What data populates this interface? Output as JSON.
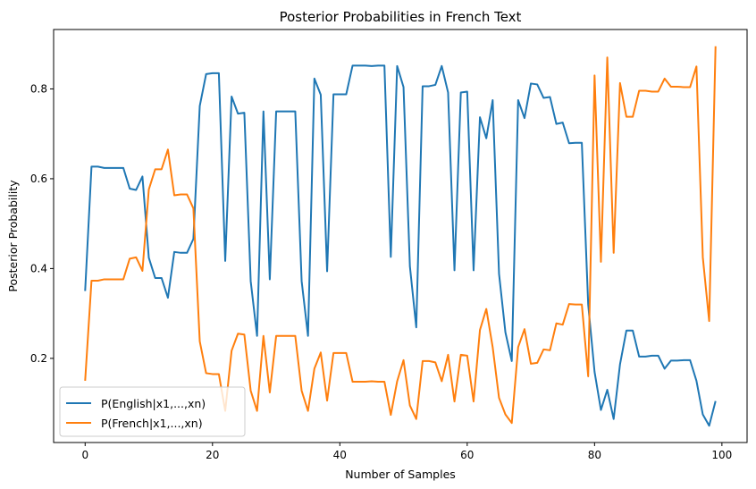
{
  "chart_data": {
    "type": "line",
    "title": "Posterior Probabilities in French Text",
    "xlabel": "Number of Samples",
    "ylabel": "Posterior Probability",
    "xlim": [
      -4.95,
      103.95
    ],
    "ylim": [
      0.0126,
      0.9323
    ],
    "xticks": [
      0,
      20,
      40,
      60,
      80,
      100
    ],
    "yticks": [
      0.2,
      0.4,
      0.6,
      0.8
    ],
    "xtick_labels": [
      "0",
      "20",
      "40",
      "60",
      "80",
      "100"
    ],
    "ytick_labels": [
      "0.2",
      "0.4",
      "0.6",
      "0.8"
    ],
    "grid": false,
    "legend_position": "lower-left",
    "x": [
      0,
      1,
      2,
      3,
      4,
      5,
      6,
      7,
      8,
      9,
      10,
      11,
      12,
      13,
      14,
      15,
      16,
      17,
      18,
      19,
      20,
      21,
      22,
      23,
      24,
      25,
      26,
      27,
      28,
      29,
      30,
      31,
      32,
      33,
      34,
      35,
      36,
      37,
      38,
      39,
      40,
      41,
      42,
      43,
      44,
      45,
      46,
      47,
      48,
      49,
      50,
      51,
      52,
      53,
      54,
      55,
      56,
      57,
      58,
      59,
      60,
      61,
      62,
      63,
      64,
      65,
      66,
      67,
      68,
      69,
      70,
      71,
      72,
      73,
      74,
      75,
      76,
      77,
      78,
      79,
      80,
      81,
      82,
      83,
      84,
      85,
      86,
      87,
      88,
      89,
      90,
      91,
      92,
      93,
      94,
      95,
      96,
      97,
      98,
      99
    ],
    "series": [
      {
        "name": "P(English|x1,...,xn)",
        "color": "#1f77b4",
        "values": [
          0.35,
          0.627,
          0.627,
          0.624,
          0.624,
          0.624,
          0.624,
          0.578,
          0.575,
          0.605,
          0.424,
          0.379,
          0.379,
          0.335,
          0.437,
          0.435,
          0.435,
          0.466,
          0.762,
          0.833,
          0.835,
          0.835,
          0.417,
          0.783,
          0.745,
          0.747,
          0.372,
          0.25,
          0.75,
          0.376,
          0.75,
          0.75,
          0.75,
          0.75,
          0.372,
          0.25,
          0.823,
          0.787,
          0.394,
          0.788,
          0.788,
          0.788,
          0.852,
          0.852,
          0.852,
          0.851,
          0.852,
          0.852,
          0.426,
          0.851,
          0.804,
          0.405,
          0.269,
          0.806,
          0.806,
          0.809,
          0.851,
          0.792,
          0.396,
          0.792,
          0.794,
          0.396,
          0.737,
          0.69,
          0.775,
          0.388,
          0.258,
          0.194,
          0.775,
          0.735,
          0.812,
          0.81,
          0.78,
          0.782,
          0.722,
          0.725,
          0.679,
          0.68,
          0.68,
          0.32,
          0.17,
          0.085,
          0.13,
          0.065,
          0.187,
          0.262,
          0.262,
          0.204,
          0.204,
          0.206,
          0.206,
          0.177,
          0.195,
          0.195,
          0.196,
          0.196,
          0.15,
          0.075,
          0.05,
          0.105
        ]
      },
      {
        "name": "P(French|x1,...,xn)",
        "color": "#ff7f0e",
        "values": [
          0.15,
          0.373,
          0.373,
          0.376,
          0.376,
          0.376,
          0.376,
          0.422,
          0.425,
          0.395,
          0.576,
          0.621,
          0.621,
          0.665,
          0.563,
          0.565,
          0.565,
          0.534,
          0.238,
          0.167,
          0.165,
          0.165,
          0.083,
          0.217,
          0.255,
          0.253,
          0.128,
          0.083,
          0.25,
          0.124,
          0.25,
          0.25,
          0.25,
          0.25,
          0.128,
          0.083,
          0.177,
          0.213,
          0.106,
          0.212,
          0.212,
          0.212,
          0.148,
          0.148,
          0.148,
          0.149,
          0.148,
          0.148,
          0.074,
          0.149,
          0.196,
          0.095,
          0.065,
          0.194,
          0.194,
          0.191,
          0.149,
          0.208,
          0.104,
          0.208,
          0.206,
          0.104,
          0.263,
          0.31,
          0.225,
          0.112,
          0.075,
          0.056,
          0.225,
          0.265,
          0.188,
          0.19,
          0.22,
          0.218,
          0.278,
          0.275,
          0.321,
          0.32,
          0.32,
          0.16,
          0.83,
          0.415,
          0.87,
          0.435,
          0.813,
          0.738,
          0.738,
          0.796,
          0.796,
          0.794,
          0.794,
          0.823,
          0.805,
          0.805,
          0.804,
          0.804,
          0.85,
          0.425,
          0.283,
          0.895
        ]
      }
    ]
  }
}
